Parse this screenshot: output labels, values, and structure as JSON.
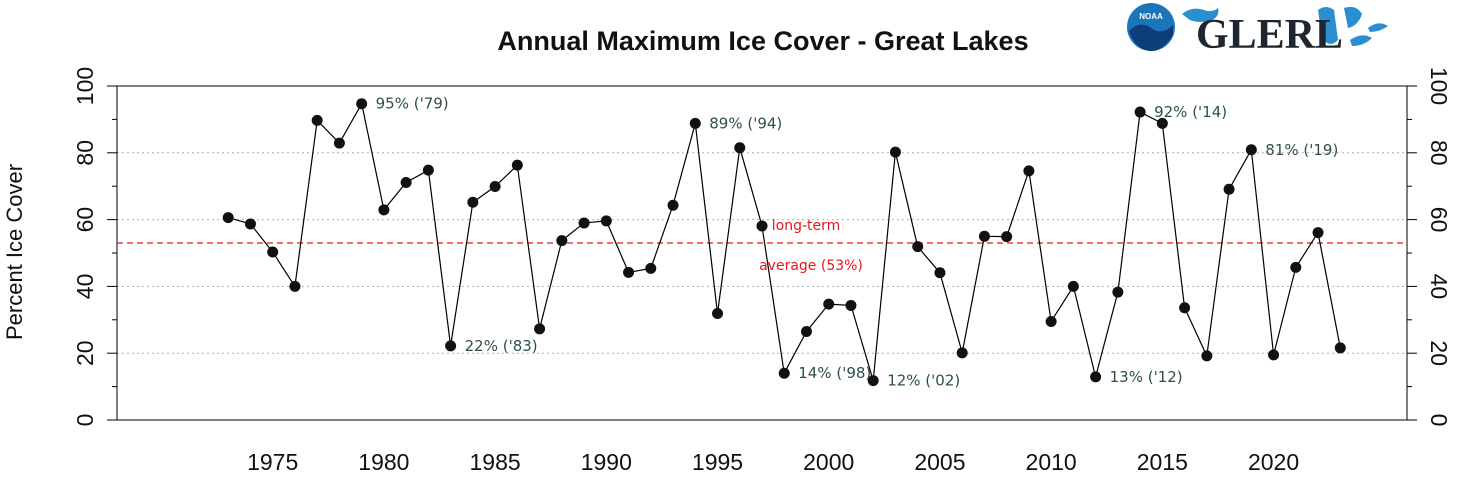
{
  "chart_data": {
    "type": "line",
    "title": "Annual Maximum Ice Cover - Great Lakes",
    "ylabel": "Percent Ice Cover",
    "xlabel": "",
    "xlim": [
      1968,
      2026
    ],
    "ylim": [
      0,
      100
    ],
    "x_ticks": [
      1975,
      1980,
      1985,
      1990,
      1995,
      2000,
      2005,
      2010,
      2015,
      2020
    ],
    "y_ticks": [
      0,
      20,
      40,
      60,
      80,
      100
    ],
    "grid": "horizontal dotted",
    "series": [
      {
        "name": "Annual Maximum Ice Cover",
        "x": [
          1973,
          1974,
          1975,
          1976,
          1977,
          1978,
          1979,
          1980,
          1981,
          1982,
          1983,
          1984,
          1985,
          1986,
          1987,
          1988,
          1989,
          1990,
          1991,
          1992,
          1993,
          1994,
          1995,
          1996,
          1997,
          1998,
          1999,
          2000,
          2001,
          2002,
          2003,
          2004,
          2005,
          2006,
          2007,
          2008,
          2009,
          2010,
          2011,
          2012,
          2013,
          2014,
          2015,
          2016,
          2017,
          2018,
          2019,
          2020,
          2021,
          2022,
          2023
        ],
        "values": [
          60.6,
          58.7,
          50.3,
          40.0,
          89.7,
          82.9,
          94.7,
          62.9,
          71.1,
          74.8,
          22.2,
          65.2,
          69.9,
          76.3,
          27.3,
          53.7,
          59.0,
          59.6,
          44.2,
          45.4,
          64.3,
          88.8,
          31.9,
          81.5,
          58.1,
          14.0,
          26.5,
          34.7,
          34.3,
          11.8,
          80.2,
          51.9,
          44.1,
          20.1,
          55.0,
          54.9,
          74.6,
          29.5,
          40.0,
          12.9,
          38.3,
          92.2,
          88.8,
          33.6,
          19.2,
          69.1,
          80.9,
          19.5,
          45.7,
          56.1,
          21.6
        ]
      }
    ],
    "reference_line": {
      "value": 53,
      "label_line1": "long-term",
      "label_line2": "average (53%)",
      "color": "#e8161a"
    },
    "annotations": [
      {
        "x": 1979,
        "text": "95% ('79)"
      },
      {
        "x": 1983,
        "text": "22% ('83)"
      },
      {
        "x": 1994,
        "text": "89% ('94)"
      },
      {
        "x": 1998,
        "text": "14% ('98)"
      },
      {
        "x": 2002,
        "text": "12% ('02)"
      },
      {
        "x": 2012,
        "text": "13% ('12)"
      },
      {
        "x": 2014,
        "text": "92% ('14)"
      },
      {
        "x": 2019,
        "text": "81% ('19)"
      }
    ],
    "colors": {
      "line": "#000000",
      "marker": "#111111",
      "annotation": "#2f4f4f",
      "grid": "#b0b0b0",
      "average": "#e8161a"
    }
  },
  "logos": {
    "noaa": "NOAA",
    "glerl": "GLERL"
  }
}
